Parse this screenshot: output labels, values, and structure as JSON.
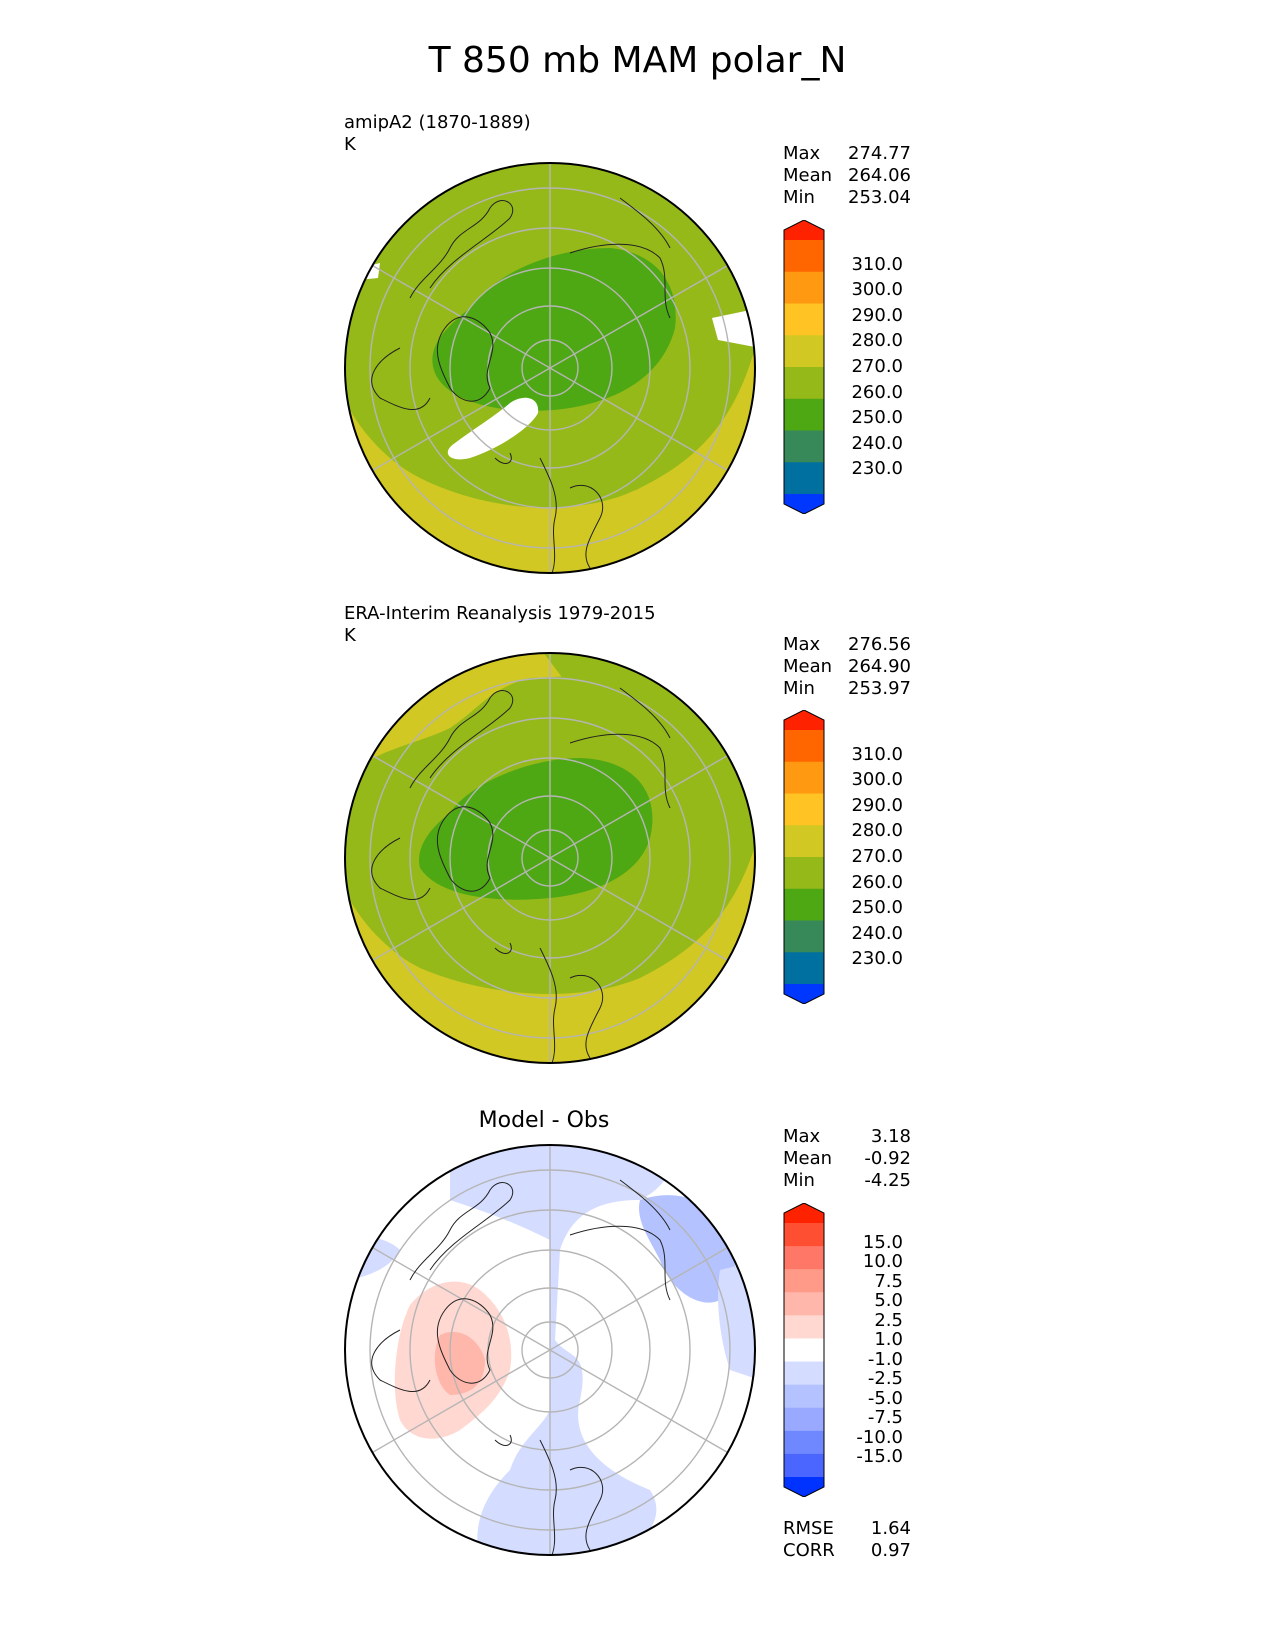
{
  "title": "T 850 mb MAM polar_N",
  "panels": [
    {
      "id": "model",
      "title": "amipA2 (1870-1889)",
      "units": "K",
      "stats": [
        {
          "label": "Max",
          "value": "274.77"
        },
        {
          "label": "Mean",
          "value": "264.06"
        },
        {
          "label": "Min",
          "value": "253.04"
        }
      ]
    },
    {
      "id": "obs",
      "title": "ERA-Interim Reanalysis 1979-2015",
      "units": "K",
      "stats": [
        {
          "label": "Max",
          "value": "276.56"
        },
        {
          "label": "Mean",
          "value": "264.90"
        },
        {
          "label": "Min",
          "value": "253.97"
        }
      ]
    },
    {
      "id": "diff",
      "title": "Model - Obs",
      "units": "",
      "stats": [
        {
          "label": "Max",
          "value": "3.18"
        },
        {
          "label": "Mean",
          "value": "-0.92"
        },
        {
          "label": "Min",
          "value": "-4.25"
        }
      ],
      "extra_stats": [
        {
          "label": "RMSE",
          "value": "1.64"
        },
        {
          "label": "CORR",
          "value": "0.97"
        }
      ]
    }
  ],
  "colorbar_main": {
    "ticks": [
      "310.0",
      "300.0",
      "290.0",
      "280.0",
      "270.0",
      "260.0",
      "250.0",
      "240.0",
      "230.0"
    ],
    "colors_top_to_bottom": [
      "#ff2200",
      "#ff6600",
      "#ff9911",
      "#ffc423",
      "#d2c823",
      "#96b91a",
      "#4ea814",
      "#37895a",
      "#0070a0",
      "#0037ff"
    ]
  },
  "colorbar_diff": {
    "ticks": [
      "15.0",
      "10.0",
      "7.5",
      "5.0",
      "2.5",
      "1.0",
      "-1.0",
      "-2.5",
      "-5.0",
      "-7.5",
      "-10.0",
      "-15.0"
    ],
    "colors_top_to_bottom": [
      "#ff2200",
      "#ff4f33",
      "#ff7766",
      "#ff9988",
      "#ffb7ab",
      "#ffd8d1",
      "#ffffff",
      "#d4dcff",
      "#b4c3ff",
      "#99a9ff",
      "#7088ff",
      "#4a66ff",
      "#0033ff"
    ]
  },
  "colors": {
    "green_band": "#96b91a",
    "yellow_band": "#d2c823",
    "dark_green": "#4ea814",
    "diff_blue_light": "#d4dcff",
    "diff_blue_mid": "#b4c3ff",
    "diff_red_light": "#ffd8d1",
    "diff_red_mid": "#ffb7ab"
  }
}
